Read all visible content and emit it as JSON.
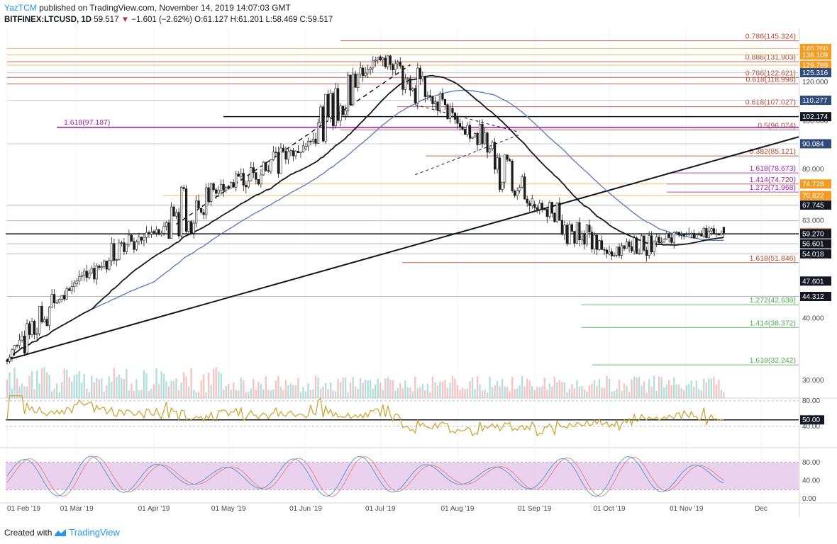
{
  "header": {
    "author": "YazTCM",
    "published": "published on TradingView.com, November 14, 2019 14:07:03 GMT",
    "symbol": "BITFINEX:LTCUSD, 1D",
    "last": "59.517",
    "arrow": "▼",
    "change": "−1.601 (−2.62%)",
    "ohlc": "O:61.127 H:61.201 L:58.469 C:59.517"
  },
  "footer": {
    "created_with": "Created with",
    "brand": "TradingView"
  },
  "colors": {
    "fib_red": "#b5482f",
    "fib_purple": "#9c27b0",
    "fib_green": "#4caf50",
    "orange": "#f59b22",
    "navy": "#2f4b7c",
    "up": "#26a69a",
    "down": "#ef5350",
    "ma_blue": "#5677b8",
    "rsi": "#c9a227",
    "stoch_k": "#5b9bd5",
    "stoch_d": "#e08a8a",
    "stoch_band": "#e1bee7"
  },
  "chart_data": {
    "type": "candlestick",
    "x_labels": [
      "01 Feb '19",
      "01 Mar '19",
      "01 Apr '19",
      "01 May '19",
      "01 Jun '19",
      "01 Jul '19",
      "01 Aug '19",
      "01 Sep '19",
      "01 Oct '19",
      "01 Nov '19",
      "Dec"
    ],
    "price_ticks": [
      "120.000",
      "100.000",
      "80.000",
      "63.000",
      "40.000",
      "30.000"
    ],
    "price_tags": [
      {
        "value": "140.260",
        "color": "orange"
      },
      {
        "value": "136.109",
        "color": "orange"
      },
      {
        "value": "129.789",
        "color": "orange"
      },
      {
        "value": "125.316",
        "color": "navy"
      },
      {
        "value": "110.277",
        "color": "navy"
      },
      {
        "value": "102.174",
        "color": "black"
      },
      {
        "value": "90.084",
        "color": "navy"
      },
      {
        "value": "74.728",
        "color": "orange"
      },
      {
        "value": "70.822",
        "color": "orange"
      },
      {
        "value": "67.745",
        "color": "black"
      },
      {
        "value": "59.517",
        "color": "red"
      },
      {
        "value": "59.270",
        "color": "black"
      },
      {
        "value": "56.601",
        "color": "black"
      },
      {
        "value": "54.018",
        "color": "black"
      },
      {
        "value": "47.601",
        "color": "black"
      },
      {
        "value": "44.312",
        "color": "black"
      }
    ],
    "fib_levels": [
      {
        "label": "0.786",
        "value": "145.324",
        "group": "red"
      },
      {
        "label": "0.886",
        "value": "131.903",
        "group": "red"
      },
      {
        "label": "0.786",
        "value": "122.621",
        "group": "red"
      },
      {
        "label": "0.618",
        "value": "118.998",
        "group": "red"
      },
      {
        "label": "0.618",
        "value": "107.027",
        "group": "red"
      },
      {
        "label": "0.5",
        "value": "96.074",
        "group": "red"
      },
      {
        "label": "0.382",
        "value": "85.121",
        "group": "red"
      },
      {
        "label": "1.618",
        "value": "78.673",
        "group": "purple"
      },
      {
        "label": "1.414",
        "value": "74.720",
        "group": "purple"
      },
      {
        "label": "1.272",
        "value": "71.968",
        "group": "purple"
      },
      {
        "label": "1.618",
        "value": "51.846",
        "group": "red"
      },
      {
        "label": "1.272",
        "value": "42.638",
        "group": "green"
      },
      {
        "label": "1.414",
        "value": "38.372",
        "group": "green"
      },
      {
        "label": "1.618",
        "value": "32.242",
        "group": "green"
      },
      {
        "label": "1.618",
        "value": "97.187",
        "group": "purple"
      }
    ],
    "rsi_ticks": [
      "80.00",
      "50.00",
      "40.00"
    ],
    "stoch_ticks": [
      "80.00",
      "40.00",
      "0.00"
    ],
    "ohlc_monthly": [
      {
        "month": "Feb",
        "open": 33,
        "high": 48,
        "low": 31,
        "close": 47
      },
      {
        "month": "Mar",
        "open": 47,
        "high": 63,
        "low": 45,
        "close": 60
      },
      {
        "month": "Apr",
        "open": 60,
        "high": 99,
        "low": 58,
        "close": 74
      },
      {
        "month": "May",
        "open": 74,
        "high": 100,
        "low": 66,
        "close": 88
      },
      {
        "month": "Jun",
        "open": 88,
        "high": 145,
        "low": 86,
        "close": 135
      },
      {
        "month": "Jul",
        "open": 135,
        "high": 136,
        "low": 79,
        "close": 102
      },
      {
        "month": "Aug",
        "open": 102,
        "high": 108,
        "low": 62,
        "close": 68
      },
      {
        "month": "Sep",
        "open": 68,
        "high": 80,
        "low": 52,
        "close": 54
      },
      {
        "month": "Oct",
        "open": 54,
        "high": 60,
        "low": 47,
        "close": 59
      },
      {
        "month": "Nov",
        "open": 59,
        "high": 67,
        "low": 58,
        "close": 59.5
      }
    ]
  }
}
